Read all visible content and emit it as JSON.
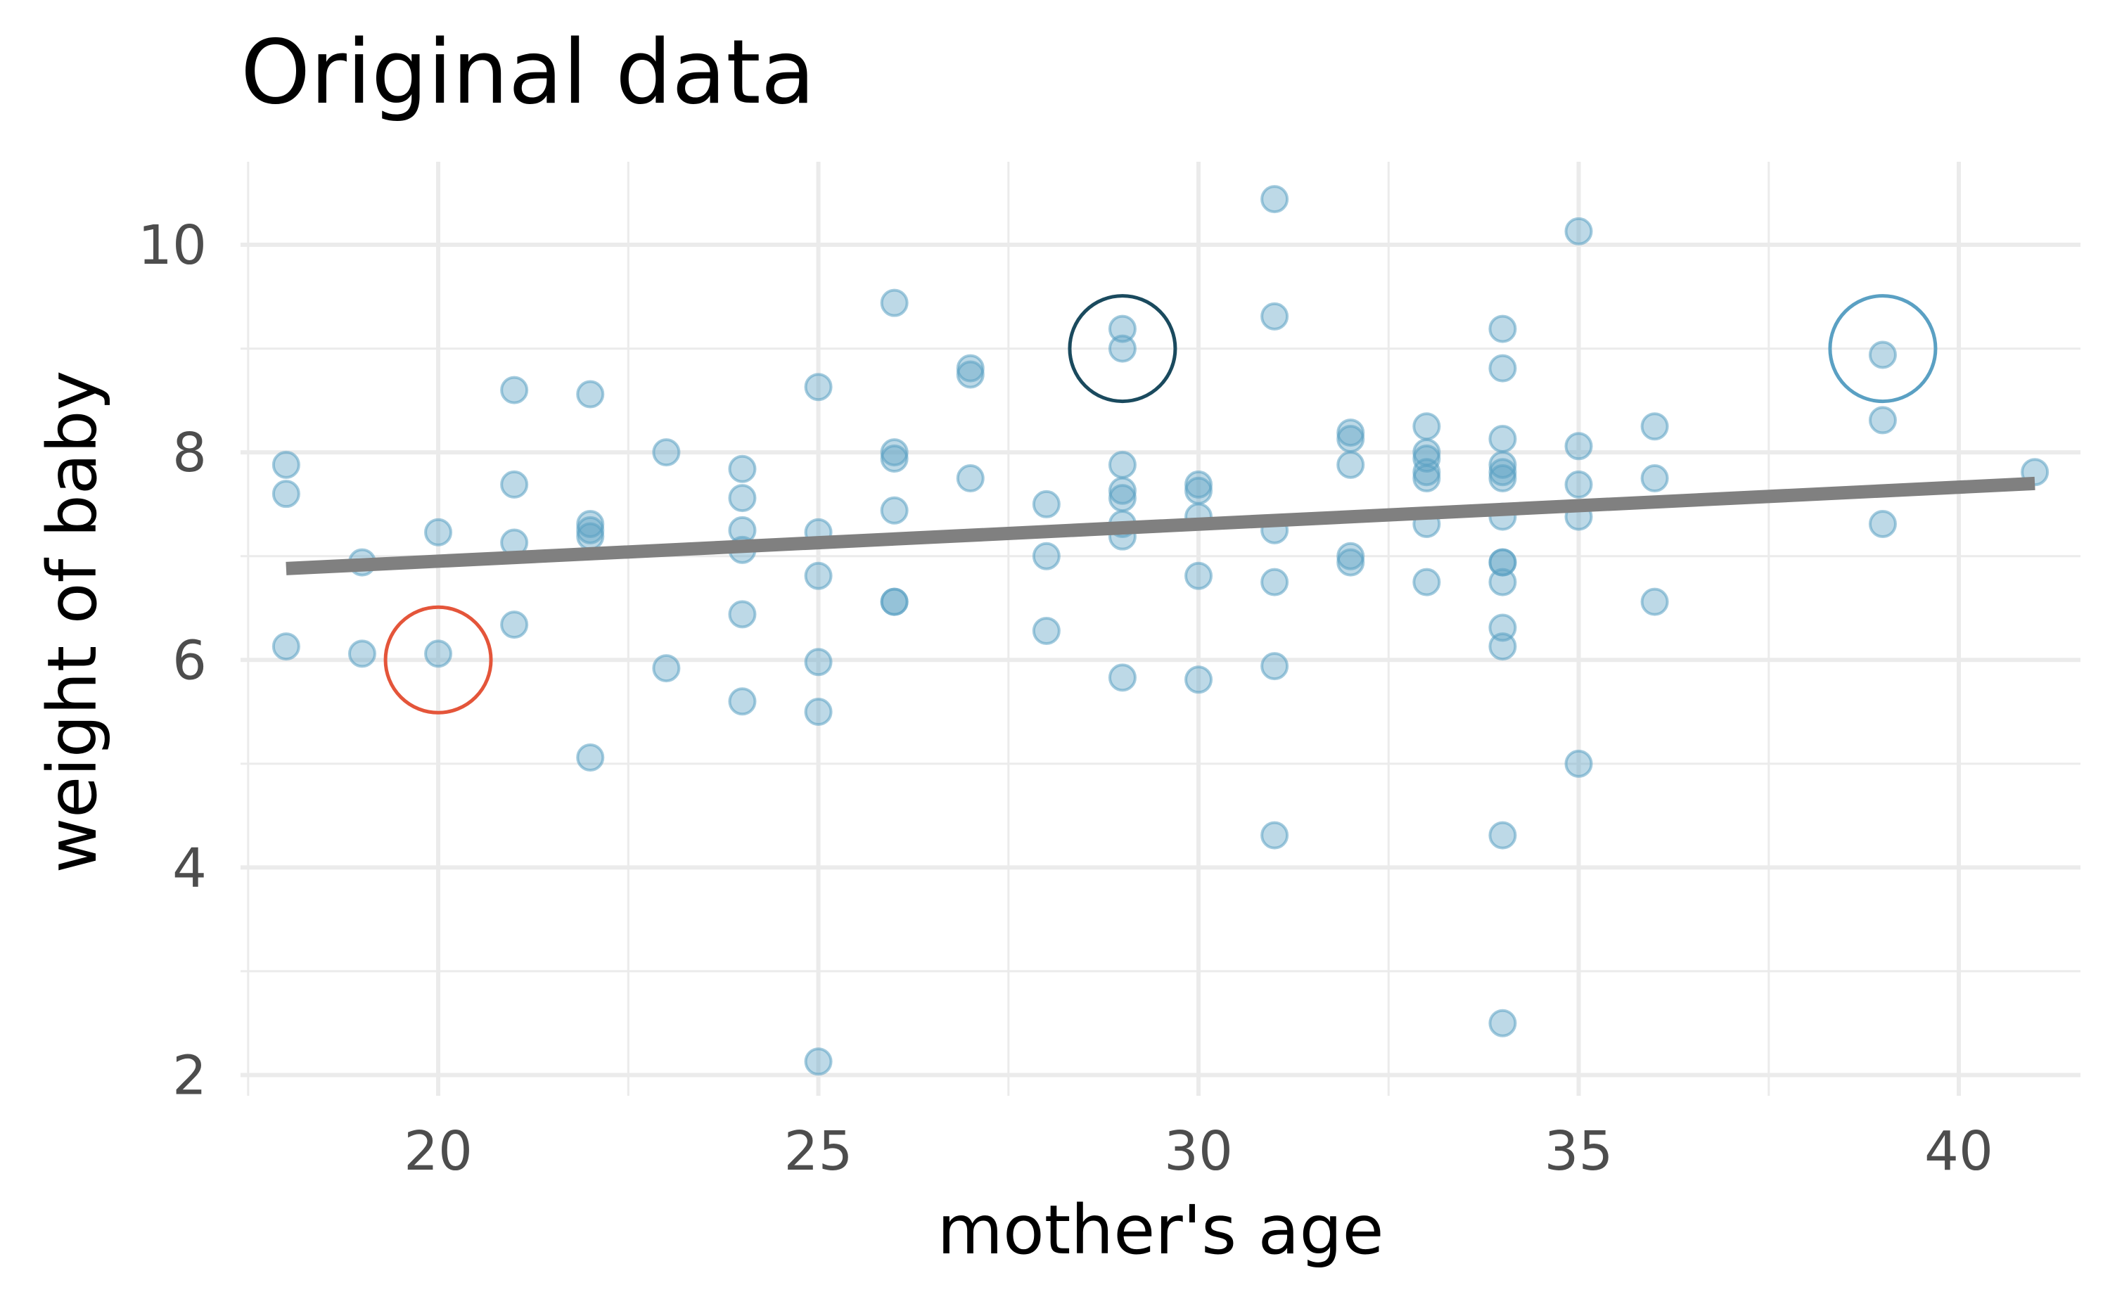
{
  "chart_data": {
    "type": "scatter",
    "title": "Original data",
    "xlabel": "mother's age",
    "ylabel": "weight of baby",
    "xlim": [
      17.4,
      41.6
    ],
    "ylim": [
      1.8,
      10.8
    ],
    "x_ticks": [
      20,
      25,
      30,
      35,
      40
    ],
    "y_ticks": [
      2,
      4,
      6,
      8,
      10
    ],
    "x_tick_labels": [
      "20",
      "25",
      "30",
      "35",
      "40"
    ],
    "y_tick_labels": [
      "2",
      "4",
      "6",
      "8",
      "10"
    ],
    "grid": true,
    "legend": "none",
    "colors": {
      "points": "#5aa0c3",
      "fit_line": "#808080",
      "highlight_low": "#e4553a",
      "highlight_mid": "#1a4a5e",
      "highlight_high": "#5aa0c3",
      "grid": "#ebebeb"
    },
    "points": [
      [
        18,
        7.88
      ],
      [
        18,
        7.6
      ],
      [
        18,
        6.13
      ],
      [
        19,
        6.94
      ],
      [
        19,
        6.06
      ],
      [
        20,
        7.23
      ],
      [
        20,
        6.06
      ],
      [
        21,
        8.6
      ],
      [
        21,
        7.69
      ],
      [
        21,
        7.13
      ],
      [
        21,
        6.34
      ],
      [
        22,
        8.56
      ],
      [
        22,
        7.31
      ],
      [
        22,
        7.25
      ],
      [
        22,
        7.19
      ],
      [
        22,
        5.06
      ],
      [
        23,
        8.0
      ],
      [
        23,
        5.92
      ],
      [
        24,
        7.84
      ],
      [
        24,
        7.56
      ],
      [
        24,
        7.25
      ],
      [
        24,
        7.06
      ],
      [
        24,
        6.44
      ],
      [
        24,
        5.6
      ],
      [
        25,
        8.63
      ],
      [
        25,
        7.23
      ],
      [
        25,
        6.81
      ],
      [
        25,
        5.98
      ],
      [
        25,
        5.5
      ],
      [
        25,
        2.13
      ],
      [
        26,
        9.44
      ],
      [
        26,
        8.0
      ],
      [
        26,
        7.94
      ],
      [
        26,
        7.44
      ],
      [
        26,
        6.56
      ],
      [
        26,
        6.56
      ],
      [
        27,
        8.81
      ],
      [
        27,
        8.75
      ],
      [
        27,
        7.75
      ],
      [
        28,
        7.5
      ],
      [
        28,
        7.0
      ],
      [
        28,
        6.28
      ],
      [
        29,
        9.19
      ],
      [
        29,
        9.0
      ],
      [
        29,
        7.88
      ],
      [
        29,
        7.63
      ],
      [
        29,
        7.56
      ],
      [
        29,
        7.31
      ],
      [
        29,
        7.19
      ],
      [
        29,
        5.83
      ],
      [
        30,
        7.69
      ],
      [
        30,
        7.63
      ],
      [
        30,
        7.38
      ],
      [
        30,
        6.81
      ],
      [
        30,
        5.81
      ],
      [
        31,
        10.44
      ],
      [
        31,
        9.31
      ],
      [
        31,
        7.25
      ],
      [
        31,
        6.75
      ],
      [
        31,
        5.94
      ],
      [
        31,
        4.31
      ],
      [
        32,
        8.19
      ],
      [
        32,
        8.13
      ],
      [
        32,
        7.88
      ],
      [
        32,
        7.0
      ],
      [
        32,
        6.94
      ],
      [
        33,
        8.25
      ],
      [
        33,
        8.0
      ],
      [
        33,
        7.94
      ],
      [
        33,
        7.81
      ],
      [
        33,
        7.75
      ],
      [
        33,
        7.31
      ],
      [
        33,
        6.75
      ],
      [
        34,
        9.19
      ],
      [
        34,
        8.81
      ],
      [
        34,
        8.13
      ],
      [
        34,
        7.88
      ],
      [
        34,
        7.81
      ],
      [
        34,
        7.75
      ],
      [
        34,
        7.38
      ],
      [
        34,
        6.94
      ],
      [
        34,
        6.94
      ],
      [
        34,
        6.75
      ],
      [
        34,
        6.31
      ],
      [
        34,
        6.13
      ],
      [
        34,
        4.31
      ],
      [
        34,
        2.5
      ],
      [
        35,
        10.13
      ],
      [
        35,
        8.06
      ],
      [
        35,
        7.69
      ],
      [
        35,
        7.38
      ],
      [
        35,
        5.0
      ],
      [
        36,
        8.25
      ],
      [
        36,
        7.75
      ],
      [
        36,
        6.56
      ],
      [
        39,
        8.94
      ],
      [
        39,
        8.31
      ],
      [
        39,
        7.31
      ],
      [
        41,
        7.81
      ]
    ],
    "fit_line": {
      "x": [
        18,
        41
      ],
      "y": [
        6.88,
        7.7
      ]
    },
    "highlighted_points": [
      {
        "x": 20,
        "y": 6.0,
        "color": "#e4553a"
      },
      {
        "x": 29,
        "y": 9.0,
        "color": "#1a4a5e"
      },
      {
        "x": 39,
        "y": 9.0,
        "color": "#5aa0c3"
      }
    ]
  }
}
